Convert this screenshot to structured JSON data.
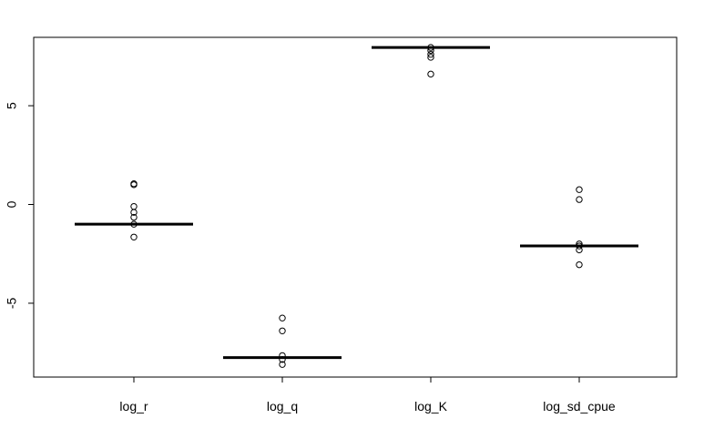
{
  "chart_data": {
    "type": "boxplot",
    "categories": [
      "log_r",
      "log_q",
      "log_K",
      "log_sd_cpue"
    ],
    "y_ticks": [
      "-5",
      "0",
      "5"
    ],
    "y_tick_values": [
      -5,
      0,
      5
    ],
    "ylim": [
      -8.6,
      8.6
    ],
    "grid": false,
    "legend": "none",
    "series": [
      {
        "category": "log_r",
        "median": -1.0,
        "outliers": [
          1.0,
          1.05,
          -0.1,
          -0.4,
          -0.65,
          -1.0,
          -1.65
        ]
      },
      {
        "category": "log_q",
        "median": -7.75,
        "outliers": [
          -5.75,
          -6.4,
          -7.65,
          -7.85,
          -8.1
        ]
      },
      {
        "category": "log_K",
        "median": 7.95,
        "outliers": [
          7.95,
          7.8,
          7.6,
          7.45,
          6.6
        ]
      },
      {
        "category": "log_sd_cpue",
        "median": -2.1,
        "outliers": [
          0.75,
          0.25,
          -2.0,
          -2.1,
          -2.3,
          -3.05
        ]
      }
    ],
    "colors": {
      "median": "#000000",
      "points": "#000000",
      "frame": "#000000"
    }
  }
}
